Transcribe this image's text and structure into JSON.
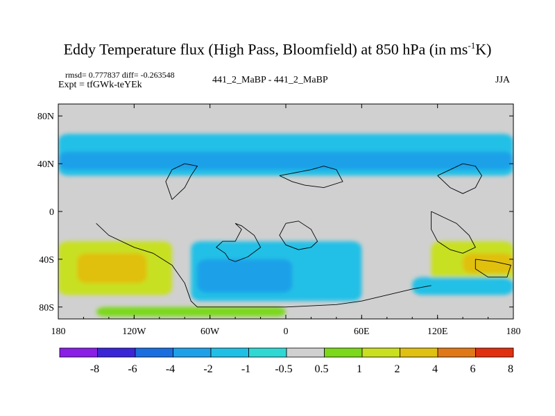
{
  "title": {
    "main": "Eddy Temperature flux (High Pass, Bloomfield) at 850 hPa (in ms",
    "superscript": "-1",
    "suffix": "K)"
  },
  "stats": {
    "line1": "rmsd= 0.777837 diff= -0.263548",
    "expt": "Expt = tfGWk-teYEk",
    "runs": "441_2_MaBP - 441_2_MaBP",
    "season": "JJA"
  },
  "chart_data": {
    "type": "heatmap",
    "projection": "cylindrical-equidistant",
    "xlim": [
      -180,
      180
    ],
    "ylim": [
      -90,
      90
    ],
    "x_ticks": [
      "180",
      "120W",
      "60W",
      "0",
      "60E",
      "120E",
      "180"
    ],
    "x_tick_values": [
      -180,
      -120,
      -60,
      0,
      60,
      120,
      180
    ],
    "y_ticks": [
      "80N",
      "40N",
      "0",
      "40S",
      "80S"
    ],
    "y_tick_values": [
      80,
      40,
      0,
      -40,
      -80
    ],
    "colorbar": {
      "levels": [
        "-8",
        "-6",
        "-4",
        "-2",
        "-1",
        "-0.5",
        "0.5",
        "1",
        "2",
        "4",
        "6",
        "8"
      ],
      "colors": [
        "#8a1ee6",
        "#3a26d6",
        "#1a6ee0",
        "#1ea0e8",
        "#20c0e6",
        "#30d8d4",
        "#d0d0d0",
        "#7bd81a",
        "#c8e020",
        "#e0c010",
        "#e07818",
        "#e03010"
      ]
    },
    "regions": [
      {
        "name": "nh-midlat-band",
        "level": -1,
        "lat": [
          30,
          65
        ],
        "lon": [
          -180,
          180
        ]
      },
      {
        "name": "nh-midlat-core",
        "level": -2,
        "lat": [
          35,
          50
        ],
        "lon": [
          -180,
          180
        ]
      },
      {
        "name": "sh-southern-ocean",
        "level": -1,
        "lat": [
          -75,
          -25
        ],
        "lon": [
          -75,
          60
        ]
      },
      {
        "name": "sh-southern-ocean-core",
        "level": -2,
        "lat": [
          -68,
          -40
        ],
        "lon": [
          -70,
          5
        ]
      },
      {
        "name": "sh-pacific-warm",
        "level": 2,
        "lat": [
          -70,
          -25
        ],
        "lon": [
          -180,
          -90
        ]
      },
      {
        "name": "sh-pacific-warm-core",
        "level": 4,
        "lat": [
          -60,
          -35
        ],
        "lon": [
          -165,
          -110
        ]
      },
      {
        "name": "sh-australia-warm",
        "level": 2,
        "lat": [
          -60,
          -25
        ],
        "lon": [
          115,
          180
        ]
      },
      {
        "name": "sh-australia-warm-core",
        "level": 4,
        "lat": [
          -52,
          -35
        ],
        "lon": [
          140,
          180
        ]
      },
      {
        "name": "antarctic-warm-strip",
        "level": 1,
        "lat": [
          -88,
          -80
        ],
        "lon": [
          -150,
          0
        ]
      },
      {
        "name": "east-indian-ocean",
        "level": -1,
        "lat": [
          -70,
          -55
        ],
        "lon": [
          100,
          180
        ]
      }
    ]
  }
}
